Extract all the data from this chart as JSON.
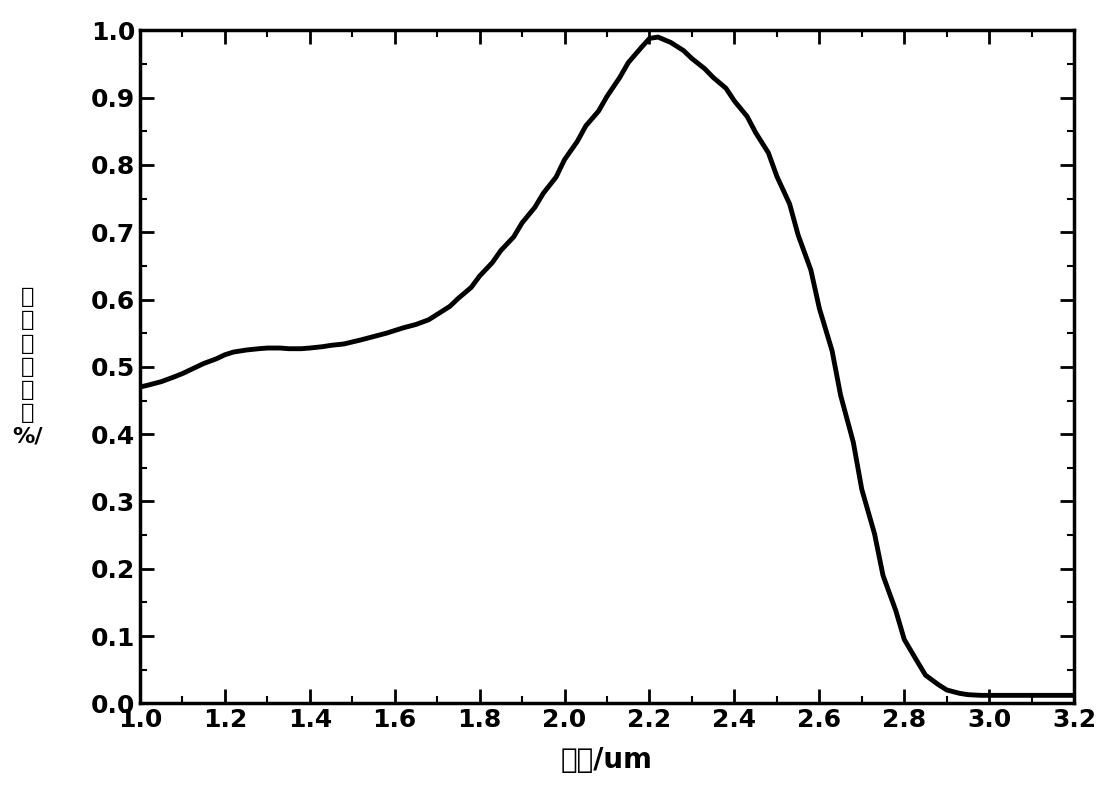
{
  "title": "",
  "xlabel": "波长/um",
  "ylabel_lines": [
    "归",
    "一",
    "化",
    "响",
    "应",
    "率",
    "%/"
  ],
  "xlim": [
    1.0,
    3.2
  ],
  "ylim": [
    0,
    1.0
  ],
  "xticks": [
    1.0,
    1.2,
    1.4,
    1.6,
    1.8,
    2.0,
    2.2,
    2.4,
    2.6,
    2.8,
    3.0,
    3.2
  ],
  "yticks": [
    0,
    0.1,
    0.2,
    0.3,
    0.4,
    0.5,
    0.6,
    0.7,
    0.8,
    0.9,
    1.0
  ],
  "line_color": "#000000",
  "line_width": 3.5,
  "background_color": "#ffffff",
  "x": [
    1.0,
    1.02,
    1.05,
    1.08,
    1.1,
    1.12,
    1.15,
    1.18,
    1.2,
    1.22,
    1.25,
    1.28,
    1.3,
    1.33,
    1.35,
    1.38,
    1.4,
    1.43,
    1.45,
    1.48,
    1.5,
    1.52,
    1.55,
    1.58,
    1.6,
    1.62,
    1.65,
    1.68,
    1.7,
    1.73,
    1.75,
    1.78,
    1.8,
    1.83,
    1.85,
    1.88,
    1.9,
    1.93,
    1.95,
    1.98,
    2.0,
    2.03,
    2.05,
    2.08,
    2.1,
    2.13,
    2.15,
    2.18,
    2.2,
    2.22,
    2.25,
    2.28,
    2.3,
    2.33,
    2.35,
    2.38,
    2.4,
    2.43,
    2.45,
    2.48,
    2.5,
    2.53,
    2.55,
    2.58,
    2.6,
    2.63,
    2.65,
    2.68,
    2.7,
    2.73,
    2.75,
    2.78,
    2.8,
    2.83,
    2.85,
    2.88,
    2.9,
    2.93,
    2.95,
    2.98,
    3.0,
    3.03,
    3.05,
    3.08,
    3.1,
    3.13,
    3.15,
    3.18,
    3.2
  ],
  "y": [
    0.47,
    0.473,
    0.478,
    0.485,
    0.49,
    0.496,
    0.505,
    0.512,
    0.518,
    0.522,
    0.525,
    0.527,
    0.528,
    0.528,
    0.527,
    0.527,
    0.528,
    0.53,
    0.532,
    0.534,
    0.537,
    0.54,
    0.545,
    0.55,
    0.554,
    0.558,
    0.563,
    0.57,
    0.578,
    0.59,
    0.602,
    0.618,
    0.635,
    0.655,
    0.673,
    0.693,
    0.714,
    0.737,
    0.758,
    0.782,
    0.808,
    0.835,
    0.858,
    0.88,
    0.902,
    0.93,
    0.952,
    0.974,
    0.988,
    0.99,
    0.982,
    0.97,
    0.958,
    0.943,
    0.93,
    0.914,
    0.895,
    0.872,
    0.848,
    0.818,
    0.783,
    0.742,
    0.696,
    0.644,
    0.587,
    0.524,
    0.458,
    0.388,
    0.318,
    0.252,
    0.19,
    0.138,
    0.095,
    0.063,
    0.042,
    0.028,
    0.02,
    0.015,
    0.013,
    0.012,
    0.012,
    0.012,
    0.012,
    0.012,
    0.012,
    0.012,
    0.012,
    0.012,
    0.012
  ]
}
